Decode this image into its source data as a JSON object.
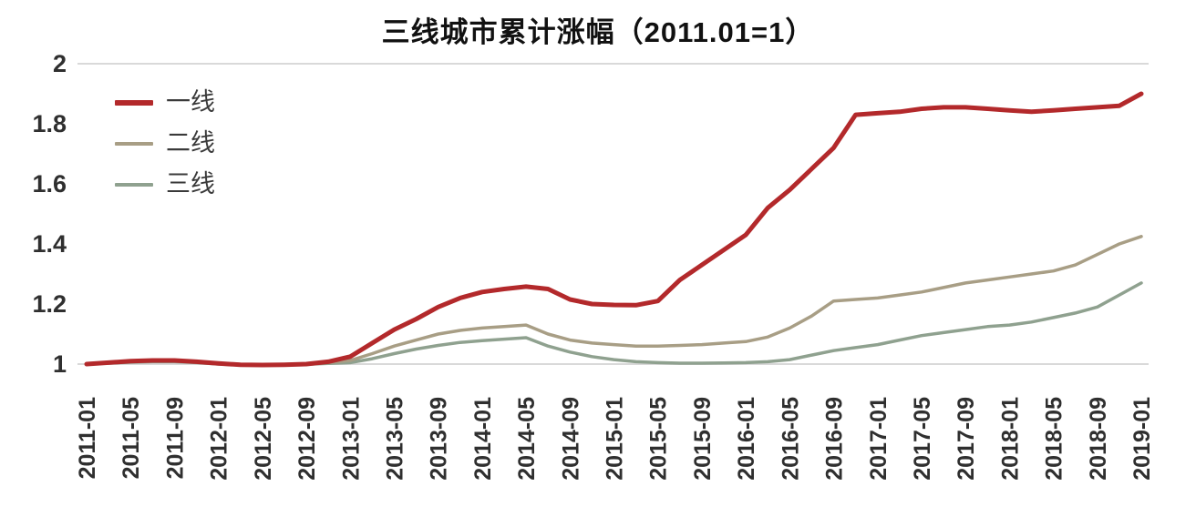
{
  "chart_data": {
    "type": "line",
    "title": "三线城市累计涨幅（2011.01=1）",
    "xlabel": "",
    "ylabel": "",
    "xlim": [
      0,
      96
    ],
    "ylim": [
      1,
      2
    ],
    "grid_y_values": [
      1,
      2
    ],
    "grid_color": "#d9d9d9",
    "axis_text_color": "#2f2f2f",
    "legend_position": "top-left",
    "y_ticks": [
      1,
      1.2,
      1.4,
      1.6,
      1.8,
      2
    ],
    "y_tick_labels": [
      "1",
      "1.2",
      "1.4",
      "1.6",
      "1.8",
      "2"
    ],
    "x_tick_positions": [
      0,
      4,
      8,
      12,
      16,
      20,
      24,
      28,
      32,
      36,
      40,
      44,
      48,
      52,
      56,
      60,
      64,
      68,
      72,
      76,
      80,
      84,
      88,
      92,
      96
    ],
    "x_tick_labels": [
      "2011-01",
      "2011-05",
      "2011-09",
      "2012-01",
      "2012-05",
      "2012-09",
      "2013-01",
      "2013-05",
      "2013-09",
      "2014-01",
      "2014-05",
      "2014-09",
      "2015-01",
      "2015-05",
      "2015-09",
      "2016-01",
      "2016-05",
      "2016-09",
      "2017-01",
      "2017-05",
      "2017-09",
      "2018-01",
      "2018-05",
      "2018-09",
      "2019-01"
    ],
    "x": [
      0,
      2,
      4,
      6,
      8,
      10,
      12,
      14,
      16,
      18,
      20,
      22,
      24,
      26,
      28,
      30,
      32,
      34,
      36,
      38,
      40,
      42,
      44,
      46,
      48,
      50,
      52,
      54,
      56,
      58,
      60,
      62,
      64,
      66,
      68,
      70,
      72,
      74,
      76,
      78,
      80,
      82,
      84,
      86,
      88,
      90,
      92,
      94,
      96
    ],
    "series": [
      {
        "key": "tier1",
        "name": "一线",
        "color": "#b3292b",
        "width": 5,
        "values": [
          1.0,
          1.005,
          1.01,
          1.012,
          1.012,
          1.008,
          1.002,
          0.998,
          0.997,
          0.998,
          1.0,
          1.008,
          1.025,
          1.07,
          1.115,
          1.15,
          1.19,
          1.22,
          1.24,
          1.25,
          1.258,
          1.25,
          1.215,
          1.2,
          1.197,
          1.196,
          1.21,
          1.28,
          1.33,
          1.38,
          1.43,
          1.52,
          1.58,
          1.65,
          1.72,
          1.83,
          1.835,
          1.84,
          1.85,
          1.855,
          1.855,
          1.85,
          1.845,
          1.84,
          1.845,
          1.85,
          1.855,
          1.86,
          1.9
        ]
      },
      {
        "key": "tier2",
        "name": "二线",
        "color": "#a89e85",
        "width": 3.5,
        "values": [
          1.0,
          1.005,
          1.008,
          1.01,
          1.01,
          1.006,
          1.002,
          0.999,
          0.998,
          0.999,
          1.001,
          1.005,
          1.012,
          1.035,
          1.06,
          1.08,
          1.1,
          1.112,
          1.12,
          1.125,
          1.13,
          1.1,
          1.08,
          1.07,
          1.065,
          1.06,
          1.06,
          1.062,
          1.065,
          1.07,
          1.075,
          1.09,
          1.12,
          1.16,
          1.21,
          1.215,
          1.22,
          1.23,
          1.24,
          1.255,
          1.27,
          1.28,
          1.29,
          1.3,
          1.31,
          1.33,
          1.365,
          1.4,
          1.425
        ]
      },
      {
        "key": "tier3",
        "name": "三线",
        "color": "#8fa18f",
        "width": 3.5,
        "values": [
          1.0,
          1.003,
          1.006,
          1.008,
          1.008,
          1.005,
          1.0,
          0.997,
          0.996,
          0.997,
          0.999,
          1.002,
          1.005,
          1.018,
          1.035,
          1.05,
          1.062,
          1.072,
          1.078,
          1.083,
          1.088,
          1.06,
          1.04,
          1.025,
          1.015,
          1.008,
          1.005,
          1.003,
          1.003,
          1.004,
          1.005,
          1.008,
          1.015,
          1.03,
          1.045,
          1.055,
          1.065,
          1.08,
          1.095,
          1.105,
          1.115,
          1.125,
          1.13,
          1.14,
          1.155,
          1.17,
          1.19,
          1.23,
          1.27
        ]
      }
    ]
  }
}
